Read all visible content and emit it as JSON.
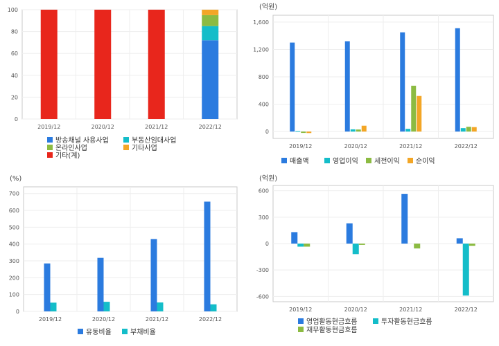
{
  "charts": [
    {
      "type": "bar",
      "stacked": true,
      "unit": "",
      "categories": [
        "2019/12",
        "2020/12",
        "2021/12",
        "2022/12"
      ],
      "ylim": [
        0,
        100
      ],
      "yticks": [
        0,
        20,
        40,
        60,
        80,
        100
      ],
      "series": [
        {
          "name": "방송채널 사용사업",
          "color": "#2b7bdf",
          "values": [
            0,
            0,
            0,
            72
          ]
        },
        {
          "name": "부동산임대사업",
          "color": "#14bdc9",
          "values": [
            0,
            0,
            0,
            13
          ]
        },
        {
          "name": "온라인사업",
          "color": "#8cbb42",
          "values": [
            0,
            0,
            0,
            10
          ]
        },
        {
          "name": "기타사업",
          "color": "#f3a626",
          "values": [
            0,
            0,
            0,
            5
          ]
        },
        {
          "name": "기타(계)",
          "color": "#e8261c",
          "values": [
            100,
            100,
            100,
            0
          ]
        }
      ]
    },
    {
      "type": "bar",
      "unit": "(억원)",
      "categories": [
        "2019/12",
        "2020/12",
        "2021/12",
        "2022/12"
      ],
      "ylim": [
        -100,
        1700
      ],
      "yticks": [
        0,
        400,
        800,
        1200,
        1600
      ],
      "ytick_labels": [
        "0",
        "400",
        "800",
        "1,200",
        "1,600"
      ],
      "series": [
        {
          "name": "매출액",
          "color": "#2b7bdf",
          "values": [
            1300,
            1320,
            1450,
            1510
          ]
        },
        {
          "name": "영업이익",
          "color": "#14bdc9",
          "values": [
            8,
            32,
            40,
            50
          ]
        },
        {
          "name": "세전이익",
          "color": "#8cbb42",
          "values": [
            -20,
            30,
            670,
            70
          ]
        },
        {
          "name": "순이익",
          "color": "#f3a626",
          "values": [
            -22,
            85,
            520,
            65
          ]
        }
      ]
    },
    {
      "type": "bar",
      "unit": "(%)",
      "categories": [
        "2019/12",
        "2020/12",
        "2021/12",
        "2022/12"
      ],
      "ylim": [
        0,
        740
      ],
      "yticks": [
        0,
        100,
        200,
        300,
        400,
        500,
        600,
        700
      ],
      "series": [
        {
          "name": "유동비율",
          "color": "#2b7bdf",
          "values": [
            285,
            318,
            430,
            652
          ]
        },
        {
          "name": "부채비율",
          "color": "#14bdc9",
          "values": [
            52,
            57,
            53,
            42
          ]
        }
      ]
    },
    {
      "type": "bar",
      "unit": "(억원)",
      "categories": [
        "2019/12",
        "2020/12",
        "2021/12",
        "2022/12"
      ],
      "ylim": [
        -660,
        660
      ],
      "yticks": [
        -600,
        -300,
        0,
        300,
        600
      ],
      "series": [
        {
          "name": "영업활동현금흐름",
          "color": "#2b7bdf",
          "values": [
            130,
            230,
            565,
            60
          ]
        },
        {
          "name": "투자활동현금흐름",
          "color": "#14bdc9",
          "values": [
            -35,
            -120,
            0,
            -590
          ]
        },
        {
          "name": "재무활동현금흐름",
          "color": "#8cbb42",
          "values": [
            -35,
            -15,
            -55,
            -25
          ]
        }
      ]
    }
  ]
}
